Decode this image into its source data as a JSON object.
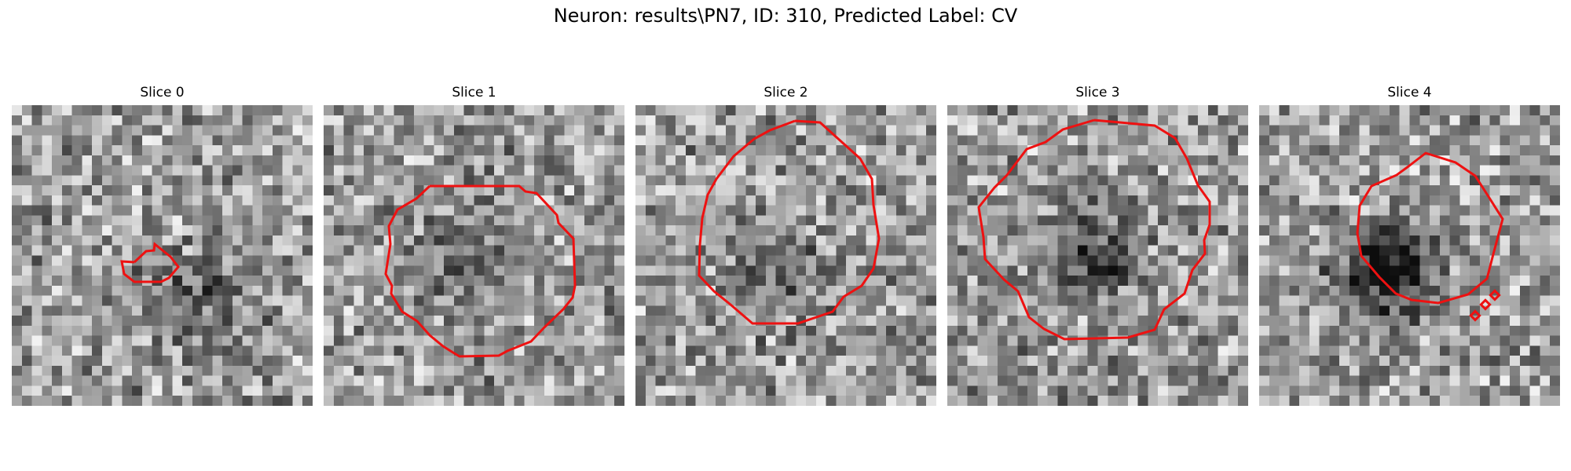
{
  "figure": {
    "title": "Neuron: results\\PN7, ID: 310, Predicted Label: CV",
    "contour_color": "#ee1111",
    "colormap": "grayscale",
    "image_grid_size": 30
  },
  "slices": [
    {
      "label": "Slice 0",
      "seed": 11,
      "dark_center": [
        0.65,
        0.65
      ],
      "dark_strength": 0.25
    },
    {
      "label": "Slice 1",
      "seed": 23,
      "dark_center": [
        0.5,
        0.5
      ],
      "dark_strength": 0.18
    },
    {
      "label": "Slice 2",
      "seed": 37,
      "dark_center": [
        0.5,
        0.55
      ],
      "dark_strength": 0.22
    },
    {
      "label": "Slice 3",
      "seed": 51,
      "dark_center": [
        0.5,
        0.5
      ],
      "dark_strength": 0.38
    },
    {
      "label": "Slice 4",
      "seed": 67,
      "dark_center": [
        0.43,
        0.55
      ],
      "dark_strength": 0.55
    }
  ]
}
